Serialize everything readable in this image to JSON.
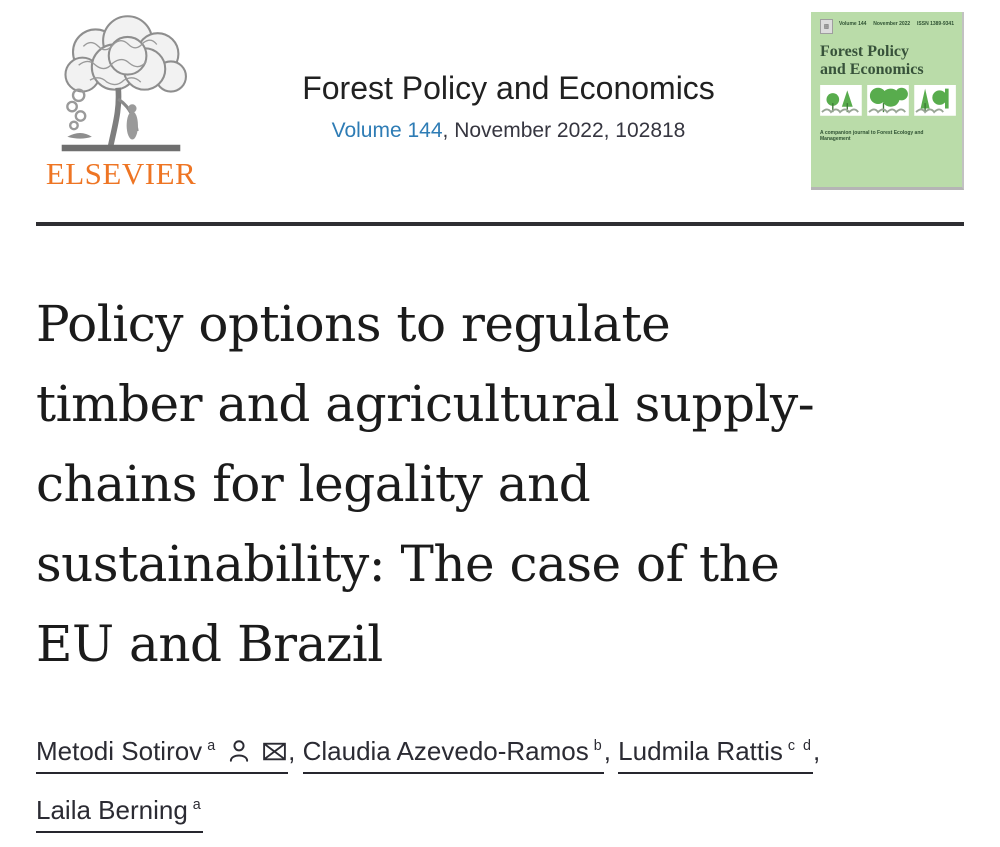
{
  "header": {
    "elsevier_logo_text": "ELSEVIER",
    "journal_title": "Forest Policy and Economics",
    "volume_link": "Volume 144",
    "issue_rest": ", November 2022, 102818"
  },
  "cover": {
    "top_labels": [
      "Volume 144",
      "November 2022",
      "ISSN 1389-9341"
    ],
    "title_line1": "Forest Policy",
    "title_line2": "and Economics",
    "subtitle": "A companion journal to Forest Ecology and Management"
  },
  "article": {
    "title": "Policy options to regulate timber and agricultural supply-chains for legality and sustainability: The case of the EU and Brazil",
    "title_lines": [
      "Policy options to regulate",
      "timber and agricultural supply-",
      "chains for legality and",
      "sustainability: The case of the",
      "EU and Brazil"
    ]
  },
  "authors": {
    "separator": ", ",
    "list": [
      {
        "name": "Metodi Sotirov",
        "sup": "a",
        "icons": [
          "person-icon",
          "envelope-icon"
        ]
      },
      {
        "name": "Claudia Azevedo-Ramos",
        "sup": "b",
        "icons": []
      },
      {
        "name": "Ludmila Rattis",
        "sup": "c d",
        "icons": []
      },
      {
        "name": "Laila Berning",
        "sup": "a",
        "icons": []
      }
    ]
  },
  "colors": {
    "accent-blue": "#2E7CB5",
    "elsevier-orange": "#EE7524",
    "cover-bg": "#BADCA9",
    "cover-text": "#2F5233",
    "tree-green": "#58AC4D",
    "divider": "#2E2E32",
    "text-dark": "#2B2B33"
  }
}
